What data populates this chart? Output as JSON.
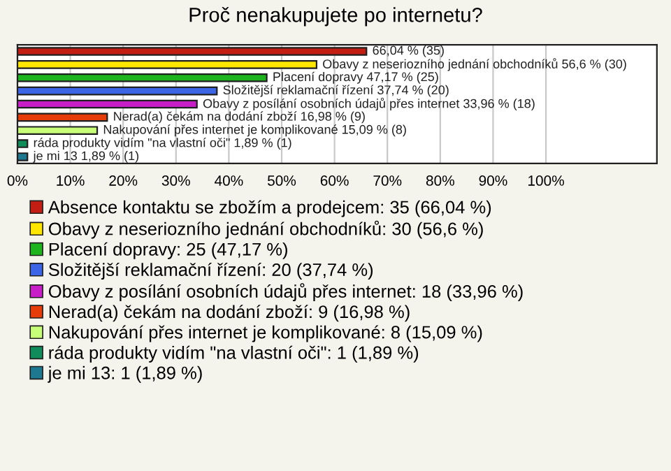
{
  "chart_data": {
    "type": "bar",
    "orientation": "horizontal",
    "title": "Proč nenakupujete po internetu?",
    "categories": [
      null,
      null,
      null,
      null,
      null,
      null,
      null,
      null,
      null
    ],
    "series": [
      {
        "name": "Absence kontaktu se zbožím a prodejcem: 35 (66,04 %)",
        "color": "#c41e14",
        "values": [
          66.04,
          null,
          null,
          null,
          null,
          null,
          null,
          null,
          null
        ],
        "value_labels": [
          "66,04 % (35)",
          null,
          null,
          null,
          null,
          null,
          null,
          null,
          null
        ]
      },
      {
        "name": "Obavy z neseriozního jednání obchodníků: 30 (56,6 %)",
        "color": "#ffe600",
        "values": [
          null,
          56.6,
          null,
          null,
          null,
          null,
          null,
          null,
          null
        ],
        "value_labels": [
          null,
          "Obavy z neseriozního jednání obchodníků 56,6 % (30)",
          null,
          null,
          null,
          null,
          null,
          null,
          null
        ]
      },
      {
        "name": "Placení dopravy: 25 (47,17 %)",
        "color": "#1eb41e",
        "values": [
          null,
          null,
          47.17,
          null,
          null,
          null,
          null,
          null,
          null
        ],
        "value_labels": [
          null,
          null,
          "Placení dopravy 47,17 % (25)",
          null,
          null,
          null,
          null,
          null,
          null
        ]
      },
      {
        "name": "Složitější reklamační řízení: 20 (37,74 %)",
        "color": "#3c64e6",
        "values": [
          null,
          null,
          null,
          37.74,
          null,
          null,
          null,
          null,
          null
        ],
        "value_labels": [
          null,
          null,
          null,
          "Složitější reklamační řízení 37,74 % (20)",
          null,
          null,
          null,
          null,
          null
        ]
      },
      {
        "name": "Obavy z posílání osobních údajů přes internet: 18 (33,96 %)",
        "color": "#c81ec8",
        "values": [
          null,
          null,
          null,
          null,
          33.96,
          null,
          null,
          null,
          null
        ],
        "value_labels": [
          null,
          null,
          null,
          null,
          "Obavy z posílání osobních údajů přes internet 33,96 % (18)",
          null,
          null,
          null,
          null
        ]
      },
      {
        "name": "Nerad(a) čekám na dodání zboží: 9 (16,98 %)",
        "color": "#e63c0a",
        "values": [
          null,
          null,
          null,
          null,
          null,
          16.98,
          null,
          null,
          null
        ],
        "value_labels": [
          null,
          null,
          null,
          null,
          null,
          "Nerad(a) čekám na dodání zboží 16,98 % (9)",
          null,
          null,
          null
        ]
      },
      {
        "name": "Nakupování přes internet je komplikované: 8 (15,09 %)",
        "color": "#c8ff78",
        "values": [
          null,
          null,
          null,
          null,
          null,
          null,
          15.09,
          null,
          null
        ],
        "value_labels": [
          null,
          null,
          null,
          null,
          null,
          null,
          "Nakupování přes internet je komplikované 15,09 % (8)",
          null,
          null
        ]
      },
      {
        "name": "ráda produkty vidím \"na vlastní oči\": 1 (1,89 %)",
        "color": "#0f8c5a",
        "values": [
          null,
          null,
          null,
          null,
          null,
          null,
          null,
          1.89,
          null
        ],
        "value_labels": [
          null,
          null,
          null,
          null,
          null,
          null,
          null,
          "ráda produkty vidím \"na vlastní oči\" 1,89 % (1)",
          null
        ]
      },
      {
        "name": "je mi 13: 1 (1,89 %)",
        "color": "#1e7890",
        "values": [
          null,
          null,
          null,
          null,
          null,
          null,
          null,
          null,
          1.89
        ],
        "value_labels": [
          null,
          null,
          null,
          null,
          null,
          null,
          null,
          null,
          "je mi 13 1,89 % (1)"
        ]
      }
    ],
    "xlim": [
      0,
      121
    ],
    "xticks": [
      {
        "value": 0,
        "label": "0%"
      },
      {
        "value": 10,
        "label": "10%"
      },
      {
        "value": 20,
        "label": "20%"
      },
      {
        "value": 30,
        "label": "30%"
      },
      {
        "value": 40,
        "label": "40%"
      },
      {
        "value": 50,
        "label": "50%"
      },
      {
        "value": 60,
        "label": "60%"
      },
      {
        "value": 70,
        "label": "70%"
      },
      {
        "value": 80,
        "label": "80%"
      },
      {
        "value": 90,
        "label": "90%"
      },
      {
        "value": 100,
        "label": "100%"
      }
    ],
    "grid": "x",
    "legend": "bottom",
    "tick_labels": "x"
  }
}
